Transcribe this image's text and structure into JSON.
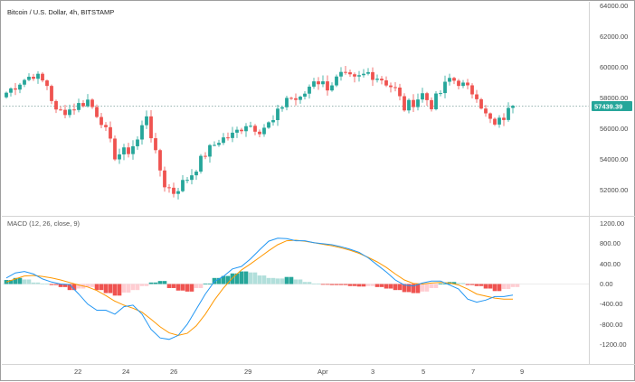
{
  "header": {
    "symbol_title": "Bitcoin / U.S. Dollar, 4h, BITSTAMP"
  },
  "indicator": {
    "label": "MACD (12, 26, close, 9)"
  },
  "price_scale": {
    "ticks": [
      "64000.00",
      "62000.00",
      "60000.00",
      "58000.00",
      "56000.00",
      "54000.00",
      "52000.00"
    ],
    "last_price": "57439.39"
  },
  "macd_scale": {
    "ticks": [
      "1200.00",
      "800.00",
      "400.00",
      "0.00",
      "-400.00",
      "-800.00",
      "-1200.00"
    ]
  },
  "time_axis": {
    "labels": [
      "22",
      "24",
      "26",
      "29",
      "Apr",
      "3",
      "5",
      "7",
      "9"
    ]
  },
  "colors": {
    "up": "#26a69a",
    "down": "#ef5350",
    "hist_up_strong": "#26a69a",
    "hist_up_weak": "#b2dfdb",
    "hist_down_strong": "#ef5350",
    "hist_down_weak": "#ffcdd2",
    "macd_line": "#2196f3",
    "signal_line": "#ff9800",
    "price_label_bg": "#26a69a"
  },
  "chart_data": [
    {
      "type": "candlestick",
      "title": "Bitcoin / U.S. Dollar, 4h, BITSTAMP",
      "ylim": [
        50600,
        64000
      ],
      "last_value": 57439.39,
      "x_labels": [
        "22",
        "24",
        "26",
        "29",
        "Apr",
        "3",
        "5",
        "7",
        "9"
      ],
      "anchors": [
        {
          "i": 0,
          "v": 58300
        },
        {
          "i": 3,
          "v": 59000
        },
        {
          "i": 6,
          "v": 59500
        },
        {
          "i": 9,
          "v": 58800
        },
        {
          "i": 11,
          "v": 57000
        },
        {
          "i": 14,
          "v": 57200
        },
        {
          "i": 18,
          "v": 57800
        },
        {
          "i": 21,
          "v": 56500
        },
        {
          "i": 24,
          "v": 54200
        },
        {
          "i": 27,
          "v": 54500
        },
        {
          "i": 29,
          "v": 55200
        },
        {
          "i": 31,
          "v": 56900
        },
        {
          "i": 33,
          "v": 54200
        },
        {
          "i": 35,
          "v": 52300
        },
        {
          "i": 37,
          "v": 51800
        },
        {
          "i": 39,
          "v": 52400
        },
        {
          "i": 41,
          "v": 53000
        },
        {
          "i": 44,
          "v": 54300
        },
        {
          "i": 47,
          "v": 55200
        },
        {
          "i": 50,
          "v": 55500
        },
        {
          "i": 53,
          "v": 56300
        },
        {
          "i": 56,
          "v": 55900
        },
        {
          "i": 59,
          "v": 56400
        },
        {
          "i": 62,
          "v": 58000
        },
        {
          "i": 65,
          "v": 57800
        },
        {
          "i": 68,
          "v": 59200
        },
        {
          "i": 71,
          "v": 58700
        },
        {
          "i": 74,
          "v": 59400
        },
        {
          "i": 77,
          "v": 59100
        },
        {
          "i": 80,
          "v": 59600
        },
        {
          "i": 83,
          "v": 59200
        },
        {
          "i": 86,
          "v": 58500
        },
        {
          "i": 88,
          "v": 57300
        },
        {
          "i": 90,
          "v": 57700
        },
        {
          "i": 92,
          "v": 58200
        },
        {
          "i": 94,
          "v": 57500
        },
        {
          "i": 96,
          "v": 58300
        },
        {
          "i": 98,
          "v": 59200
        },
        {
          "i": 100,
          "v": 59000
        },
        {
          "i": 102,
          "v": 58500
        },
        {
          "i": 104,
          "v": 58200
        },
        {
          "i": 106,
          "v": 56800
        },
        {
          "i": 108,
          "v": 56100
        },
        {
          "i": 110,
          "v": 56700
        },
        {
          "i": 112,
          "v": 57439
        }
      ]
    },
    {
      "type": "bar+line",
      "title": "MACD (12, 26, close, 9)",
      "ylim": [
        -1400,
        1300
      ],
      "series": [
        {
          "name": "histogram",
          "x": [
            0,
            2,
            4,
            6,
            8,
            10,
            12,
            14,
            16,
            18,
            20,
            22,
            24,
            26,
            28,
            30,
            32,
            34,
            36,
            38,
            40,
            42,
            44,
            46,
            48,
            50,
            52,
            54,
            56,
            58,
            60,
            62,
            64,
            66,
            68,
            70,
            72,
            74,
            76,
            78,
            80,
            82,
            84,
            86,
            88,
            90,
            92,
            94,
            96,
            98,
            100,
            102,
            104,
            106,
            108,
            110,
            112
          ],
          "values": [
            80,
            120,
            90,
            30,
            10,
            -20,
            -60,
            -120,
            -90,
            -60,
            -120,
            -180,
            -230,
            -170,
            -120,
            -40,
            30,
            60,
            -80,
            -130,
            -150,
            -80,
            10,
            120,
            160,
            210,
            250,
            230,
            170,
            120,
            110,
            140,
            90,
            40,
            10,
            -10,
            -20,
            -20,
            -40,
            -50,
            -40,
            -60,
            -90,
            -120,
            -160,
            -180,
            -150,
            -80,
            10,
            40,
            20,
            -20,
            -40,
            -90,
            -140,
            -100,
            -60
          ]
        },
        {
          "name": "macd",
          "x": [
            0,
            2,
            4,
            6,
            8,
            10,
            12,
            14,
            16,
            18,
            20,
            22,
            24,
            26,
            28,
            30,
            32,
            34,
            36,
            38,
            40,
            42,
            44,
            46,
            48,
            50,
            52,
            54,
            56,
            58,
            60,
            62,
            64,
            66,
            68,
            70,
            72,
            74,
            76,
            78,
            80,
            82,
            84,
            86,
            88,
            90,
            92,
            94,
            96,
            98,
            100,
            102,
            104,
            106,
            108,
            110,
            112
          ],
          "values": [
            120,
            220,
            250,
            200,
            100,
            40,
            0,
            -10,
            -200,
            -400,
            -520,
            -520,
            -600,
            -450,
            -420,
            -600,
            -900,
            -1070,
            -1100,
            -1020,
            -800,
            -500,
            -200,
            50,
            150,
            300,
            350,
            500,
            680,
            850,
            910,
            900,
            860,
            860,
            820,
            800,
            780,
            740,
            690,
            630,
            520,
            380,
            240,
            80,
            -20,
            -40,
            20,
            60,
            60,
            -20,
            -100,
            -300,
            -360,
            -320,
            -250,
            -250,
            -220
          ]
        },
        {
          "name": "signal",
          "x": [
            0,
            2,
            4,
            6,
            8,
            10,
            12,
            14,
            16,
            18,
            20,
            22,
            24,
            26,
            28,
            30,
            32,
            34,
            36,
            38,
            40,
            42,
            44,
            46,
            48,
            50,
            52,
            54,
            56,
            58,
            60,
            62,
            64,
            66,
            68,
            70,
            72,
            74,
            76,
            78,
            80,
            82,
            84,
            86,
            88,
            90,
            92,
            94,
            96,
            98,
            100,
            102,
            104,
            106,
            108,
            110,
            112
          ],
          "values": [
            40,
            100,
            160,
            170,
            150,
            120,
            80,
            30,
            -20,
            -60,
            -130,
            -230,
            -340,
            -420,
            -480,
            -560,
            -700,
            -850,
            -970,
            -1020,
            -980,
            -830,
            -600,
            -320,
            -80,
            120,
            280,
            400,
            530,
            660,
            780,
            860,
            870,
            850,
            820,
            790,
            760,
            720,
            670,
            610,
            530,
            440,
            330,
            200,
            80,
            10,
            0,
            20,
            30,
            20,
            -20,
            -100,
            -200,
            -240,
            -280,
            -300,
            -300
          ]
        }
      ]
    }
  ]
}
